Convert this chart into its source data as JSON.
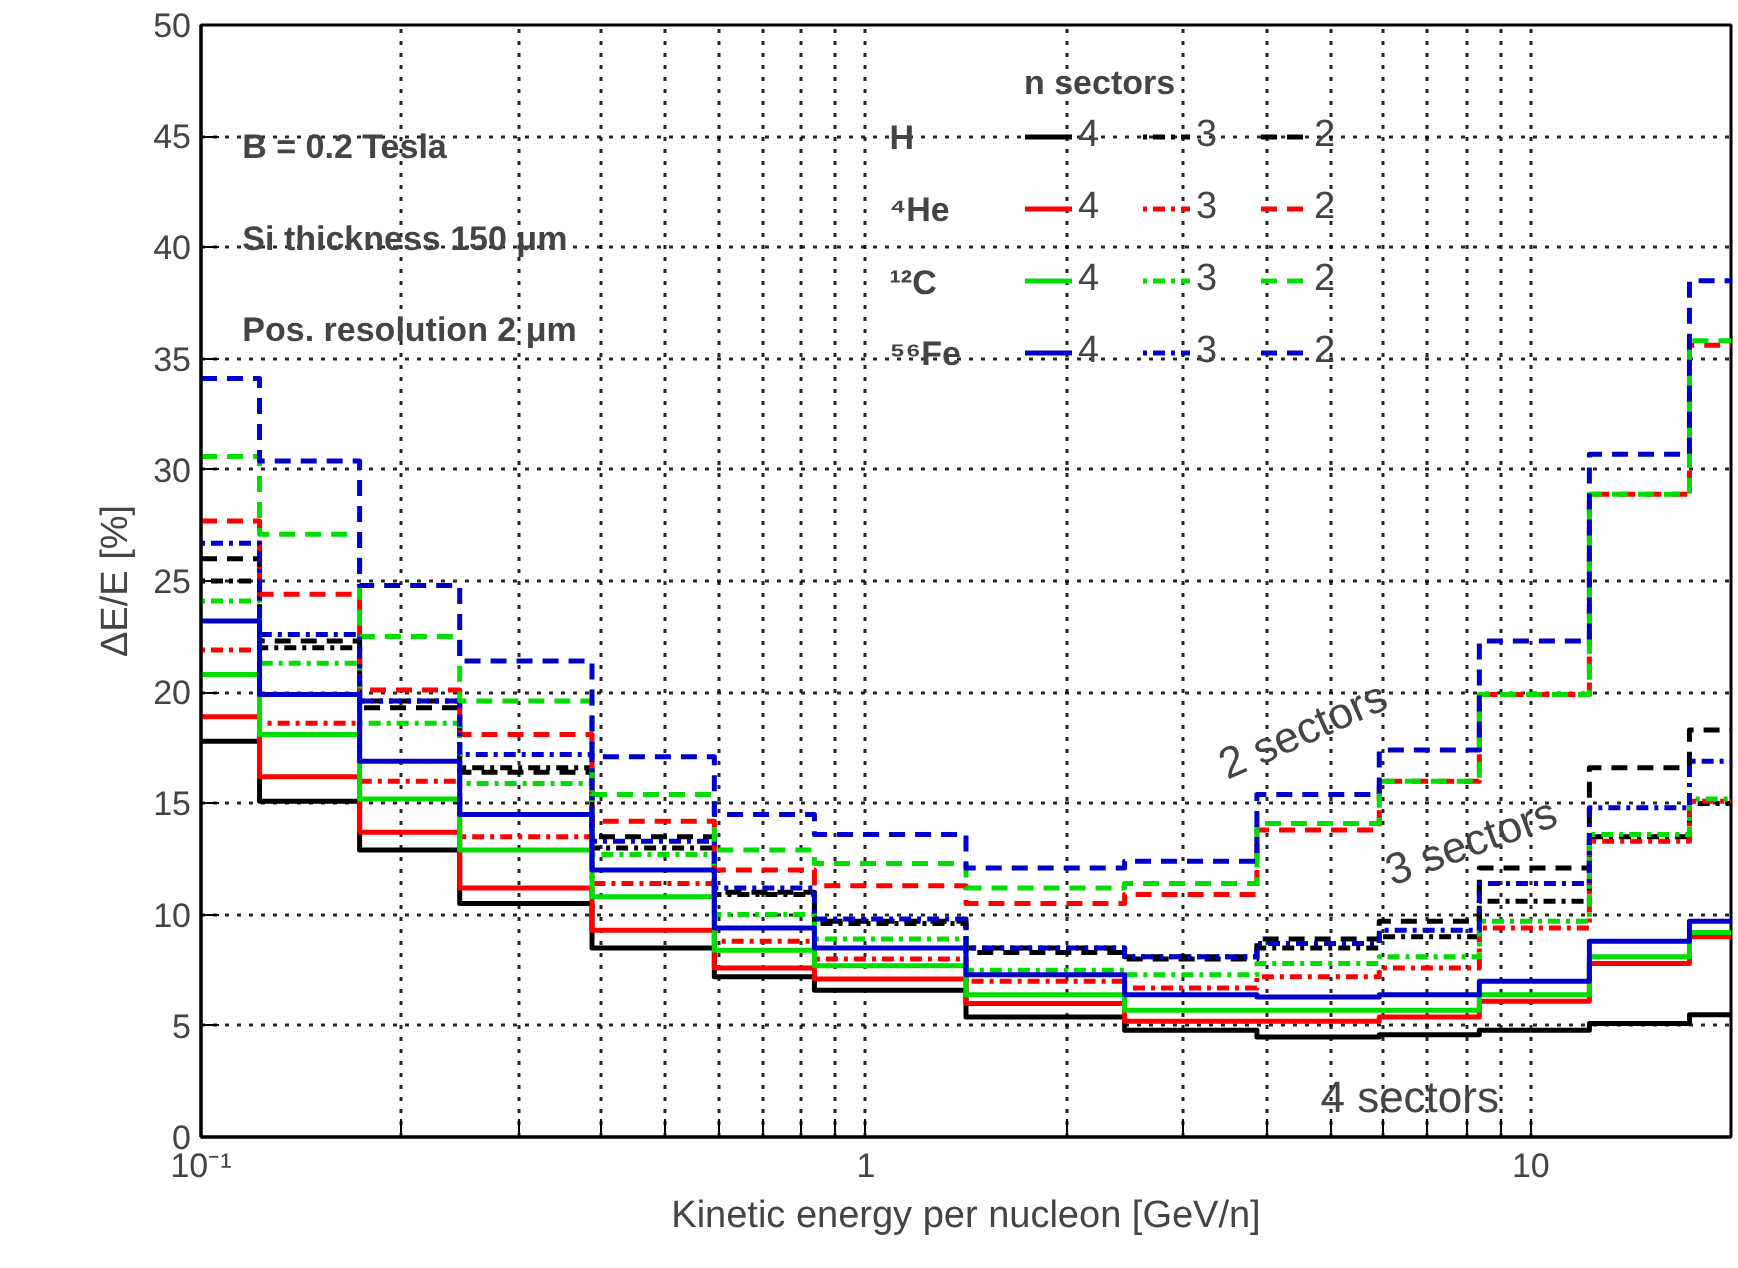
{
  "chart_data": {
    "type": "step",
    "xlabel": "Kinetic energy per nucleon [GeV/n]",
    "ylabel": "ΔE/E [%]",
    "legend_title": "n sectors",
    "legend": "top",
    "grid": true,
    "log": "x",
    "xlim": [
      0.1,
      20
    ],
    "ylim": [
      0,
      50
    ],
    "xticks": [
      {
        "value": 0.1,
        "label": "10⁻¹"
      },
      {
        "value": 0.2,
        "label": null
      },
      {
        "value": 0.3,
        "label": null
      },
      {
        "value": 0.4,
        "label": null
      },
      {
        "value": 0.5,
        "label": null
      },
      {
        "value": 0.6,
        "label": null
      },
      {
        "value": 0.7,
        "label": null
      },
      {
        "value": 0.8,
        "label": null
      },
      {
        "value": 0.9,
        "label": null
      },
      1,
      {
        "value": 2,
        "label": null
      },
      {
        "value": 3,
        "label": null
      },
      {
        "value": 4,
        "label": null
      },
      {
        "value": 5,
        "label": null
      },
      {
        "value": 6,
        "label": null
      },
      {
        "value": 7,
        "label": null
      },
      {
        "value": 8,
        "label": null
      },
      {
        "value": 9,
        "label": null
      },
      10
    ],
    "yticks": [
      0,
      5,
      10,
      15,
      20,
      25,
      30,
      35,
      40,
      45,
      50
    ],
    "x": [
      0.1,
      0.15,
      0.2,
      0.3,
      0.5,
      0.7,
      1,
      2,
      3,
      5,
      7,
      10,
      15,
      20
    ],
    "series": [
      {
        "name": "4",
        "color": "#000000",
        "line_style": "solid",
        "values": [
          17.8,
          15.1,
          12.9,
          10.5,
          8.5,
          7.2,
          6.6,
          5.4,
          4.8,
          4.5,
          4.6,
          4.8,
          5.1,
          5.5
        ]
      },
      {
        "name": "3",
        "color": "#000000",
        "line_style": "dotted",
        "values": [
          25.0,
          22.0,
          19.6,
          16.6,
          13.0,
          10.9,
          9.6,
          8.5,
          8.1,
          8.5,
          9.0,
          10.6,
          13.5,
          15.0
        ]
      },
      {
        "name": "2",
        "color": "#000000",
        "line_style": "dashed",
        "values": [
          26.0,
          22.3,
          19.3,
          16.4,
          13.5,
          11.0,
          9.7,
          8.3,
          8.0,
          8.9,
          9.7,
          12.1,
          16.6,
          18.3
        ]
      },
      {
        "name": "4",
        "color": "#ff0000",
        "line_style": "solid",
        "values": [
          18.9,
          16.2,
          13.7,
          11.2,
          9.3,
          7.6,
          7.1,
          6.0,
          5.2,
          5.2,
          5.4,
          6.1,
          7.8,
          9.0
        ]
      },
      {
        "name": "3",
        "color": "#ff0000",
        "line_style": "dotted",
        "values": [
          21.9,
          18.6,
          16.0,
          13.5,
          11.4,
          8.8,
          8.0,
          7.0,
          6.7,
          7.2,
          7.6,
          9.4,
          13.3,
          15.1
        ]
      },
      {
        "name": "2",
        "color": "#ff0000",
        "line_style": "dashed",
        "values": [
          27.7,
          24.4,
          20.1,
          18.1,
          14.2,
          12.0,
          11.3,
          10.5,
          10.9,
          13.8,
          16.0,
          19.9,
          28.9,
          35.6
        ]
      },
      {
        "name": "4",
        "color": "#00dd00",
        "line_style": "solid",
        "values": [
          20.8,
          18.1,
          15.2,
          12.9,
          10.8,
          8.4,
          7.7,
          6.4,
          5.7,
          5.7,
          5.7,
          6.4,
          8.1,
          9.2
        ]
      },
      {
        "name": "3",
        "color": "#00dd00",
        "line_style": "dotted",
        "values": [
          24.1,
          21.3,
          18.6,
          15.9,
          12.7,
          10.0,
          8.9,
          7.5,
          7.3,
          7.8,
          8.1,
          9.7,
          13.6,
          15.2
        ]
      },
      {
        "name": "2",
        "color": "#00dd00",
        "line_style": "dashed",
        "values": [
          30.6,
          27.1,
          22.5,
          19.6,
          15.4,
          12.9,
          12.3,
          11.2,
          11.4,
          14.1,
          16.0,
          19.9,
          28.9,
          35.8
        ]
      },
      {
        "name": "4",
        "color": "#0000cc",
        "line_style": "solid",
        "values": [
          23.2,
          19.9,
          16.9,
          14.5,
          12.0,
          9.4,
          8.5,
          7.3,
          6.4,
          6.3,
          6.4,
          7.0,
          8.8,
          9.7
        ]
      },
      {
        "name": "3",
        "color": "#0000cc",
        "line_style": "dotted",
        "values": [
          26.7,
          22.6,
          19.6,
          17.2,
          13.3,
          11.2,
          9.8,
          8.5,
          8.1,
          8.7,
          9.3,
          11.4,
          14.8,
          16.9
        ]
      },
      {
        "name": "2",
        "color": "#0000cc",
        "line_style": "dashed",
        "values": [
          34.1,
          30.4,
          24.8,
          21.4,
          17.1,
          14.5,
          13.6,
          12.1,
          12.4,
          15.4,
          17.4,
          22.3,
          30.7,
          38.5
        ]
      }
    ],
    "annotations": [
      "B = 0.2 Tesla",
      "Si thickness 150 μm",
      "Pos. resolution 2 μm",
      "H",
      "⁴He",
      "¹²C",
      "⁵⁶Fe",
      "2 sectors",
      "3 sectors",
      "4 sectors"
    ]
  }
}
